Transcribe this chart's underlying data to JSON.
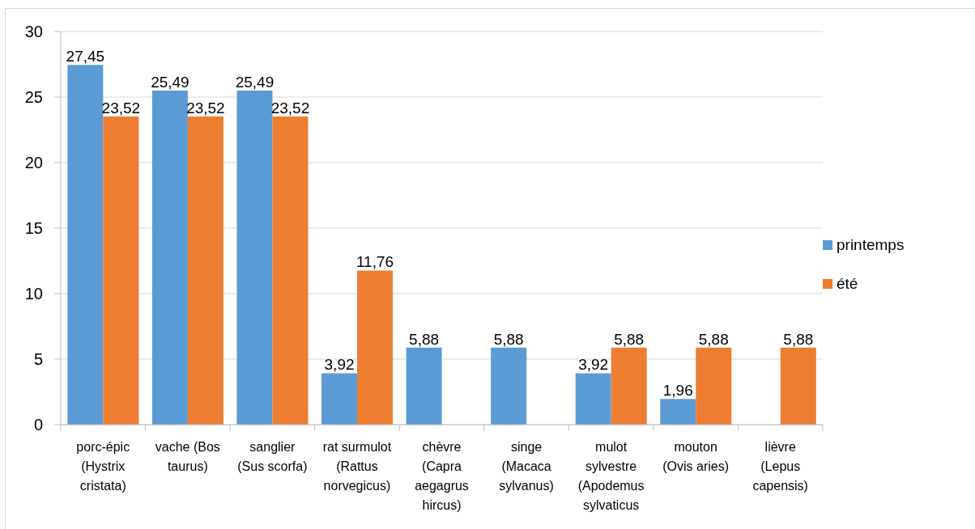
{
  "chart_data": {
    "type": "bar",
    "categories": [
      "porc-épic (Hystrix cristata)",
      "vache (Bos taurus)",
      "sanglier (Sus scorfa)",
      "rat surmulot (Rattus norvegicus)",
      "chèvre (Capra aegagrus hircus)",
      "singe (Macaca sylvanus)",
      "mulot sylvestre (Apodemus sylvaticus",
      "mouton (Ovis aries)",
      "lièvre (Lepus capensis)"
    ],
    "series": [
      {
        "name": "printemps",
        "color": "#5b9bd5",
        "values": [
          27.45,
          25.49,
          25.49,
          3.92,
          5.88,
          5.88,
          3.92,
          1.96,
          null
        ],
        "value_labels": [
          "27,45",
          "25,49",
          "25,49",
          "3,92",
          "5,88",
          "5,88",
          "3,92",
          "1,96",
          null
        ]
      },
      {
        "name": "été",
        "color": "#ed7d31",
        "values": [
          23.52,
          23.52,
          23.52,
          11.76,
          null,
          null,
          5.88,
          5.88,
          5.88
        ],
        "value_labels": [
          "23,52",
          "23,52",
          "23,52",
          "11,76",
          null,
          null,
          "5,88",
          "5,88",
          "5,88"
        ]
      }
    ],
    "ylim": [
      0,
      30
    ],
    "yticks": [
      0,
      5,
      10,
      15,
      20,
      25,
      30
    ],
    "grid": "y",
    "legend": "right"
  }
}
